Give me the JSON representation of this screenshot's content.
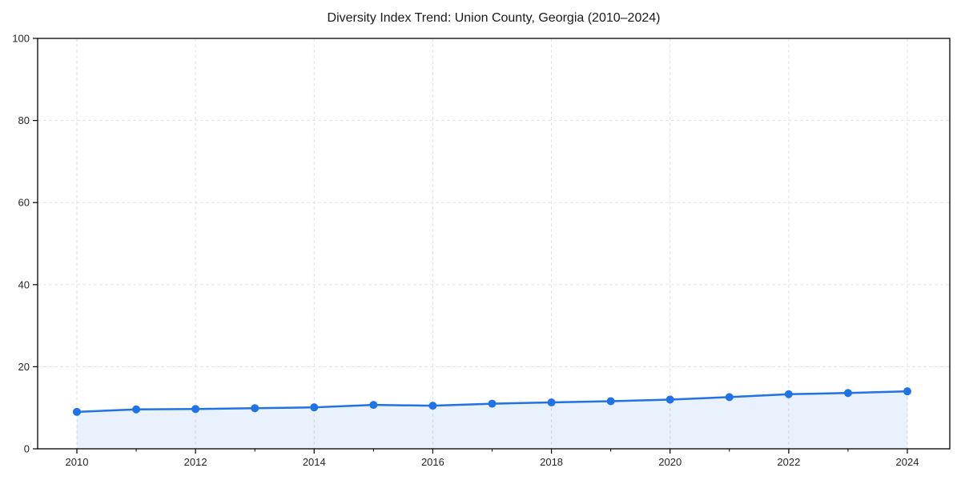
{
  "title": "Diversity Index Trend: Union County, Georgia (2010–2024)",
  "chart_data": {
    "type": "area",
    "title": "Diversity Index Trend: Union County, Georgia (2010–2024)",
    "series_name": "Diversity Index",
    "x": [
      2010,
      2011,
      2012,
      2013,
      2014,
      2015,
      2016,
      2017,
      2018,
      2019,
      2020,
      2021,
      2022,
      2023,
      2024
    ],
    "values": [
      9.0,
      9.6,
      9.7,
      9.9,
      10.1,
      10.7,
      10.5,
      11.0,
      11.3,
      11.6,
      12.0,
      12.6,
      13.3,
      13.6,
      14.0
    ],
    "xlabel": "",
    "ylabel": "",
    "ylim": [
      0,
      100
    ],
    "y_ticks": [
      0,
      20,
      40,
      60,
      80,
      100
    ],
    "x_major_ticks": [
      2010,
      2012,
      2014,
      2016,
      2018,
      2020,
      2022,
      2024
    ],
    "x_minor_ticks": [
      2011,
      2013,
      2015,
      2017,
      2019,
      2021,
      2023
    ],
    "grid": true,
    "grid_style": "dashed",
    "legend": null,
    "colors": {
      "line": "#2172e2",
      "marker": "#2172e2",
      "fill": "rgba(33,114,226,0.10)",
      "grid": "#e3e3e3",
      "spine": "#000000",
      "text": "#262626",
      "background": "#ffffff"
    }
  }
}
